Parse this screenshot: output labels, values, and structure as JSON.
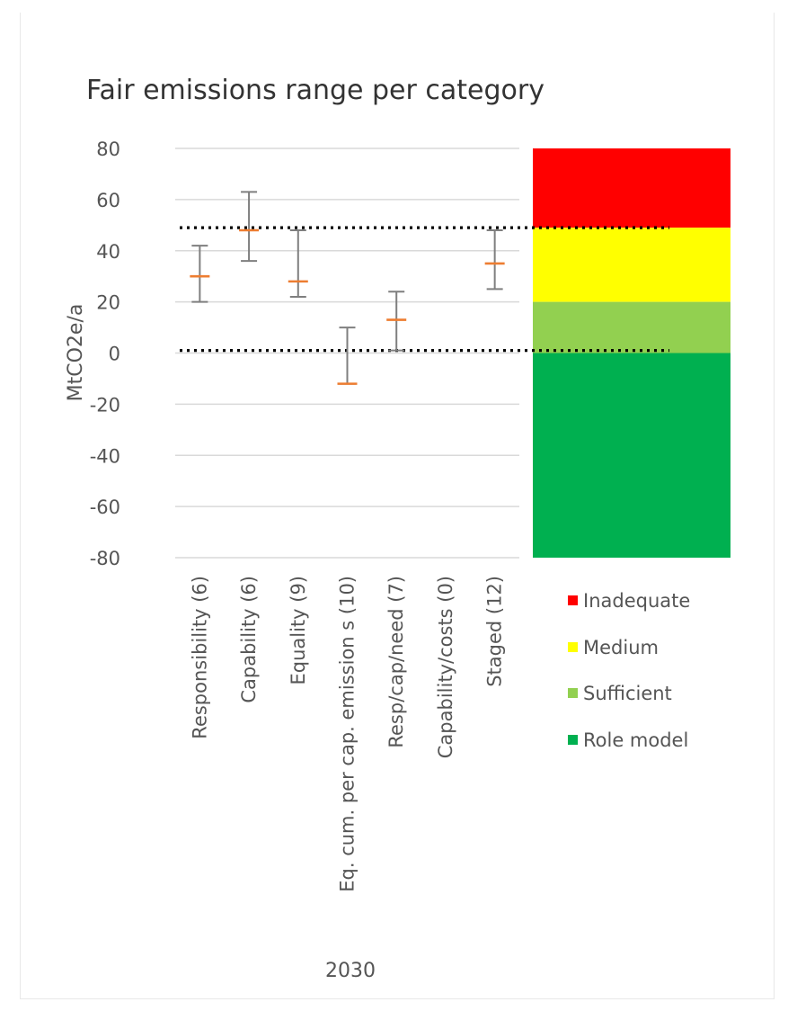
{
  "chart_data": {
    "type": "errorbar",
    "title": "Fair emissions range per category",
    "ylabel": "MtCO2e/a",
    "xlabel": "2030",
    "ylim": [
      -80,
      80
    ],
    "yticks": [
      80,
      60,
      40,
      20,
      0,
      -20,
      -40,
      -60,
      -80
    ],
    "ytick_labels": [
      "80",
      "60",
      "40",
      "20",
      "0",
      "-20",
      "-40",
      "-60",
      "-80"
    ],
    "grid": true,
    "categories": [
      "Responsibility (6)",
      "Capability (6)",
      "Equality (9)",
      "Eq. cum. per cap. emission s (10)",
      "Resp/cap/need (7)",
      "Capability/costs (0)",
      "Staged (12)"
    ],
    "series": [
      {
        "low": [
          20,
          36,
          22,
          -12,
          1,
          null,
          25
        ],
        "mid": [
          30,
          48,
          28,
          -12,
          13,
          null,
          35
        ],
        "high": [
          42,
          63,
          48,
          10,
          24,
          null,
          48
        ]
      }
    ],
    "reference_lines": [
      49,
      1
    ],
    "bands": [
      {
        "label": "Inadequate",
        "from": 49,
        "to": 80,
        "color": "#ff0000"
      },
      {
        "label": "Medium",
        "from": 20,
        "to": 49,
        "color": "#ffff00"
      },
      {
        "label": "Sufficient",
        "from": 0,
        "to": 20,
        "color": "#92d050"
      },
      {
        "label": "Role model",
        "from": -80,
        "to": 0,
        "color": "#00b050"
      }
    ],
    "colors": {
      "errorbar": "#7f7f7f",
      "midpoint": "#ed7d31",
      "gridline": "#d9d9d9",
      "reference": "#000000"
    }
  }
}
